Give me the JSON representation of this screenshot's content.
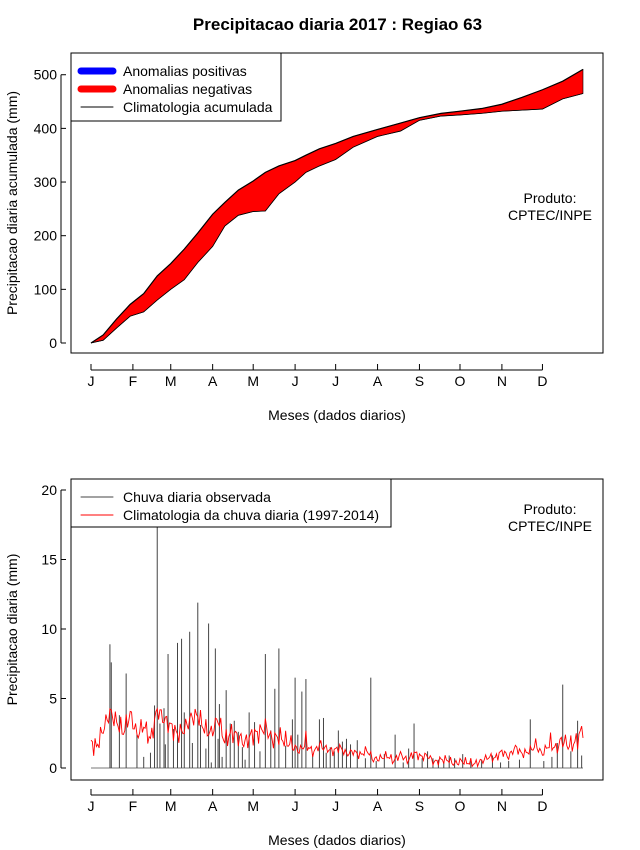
{
  "title": "Precipitacao diaria 2017 : Regiao 63",
  "colors": {
    "negative": "#ff0000",
    "positive": "#0000ff",
    "climatology_line": "#ff0000",
    "observed_bars": "#444444",
    "axis": "#000000"
  },
  "chart_data": [
    {
      "type": "area",
      "xlabel": "Meses (dados diarios)",
      "ylabel": "Precipitacao diaria acumulada (mm)",
      "xlim": [
        1,
        365
      ],
      "ylim": [
        0,
        520
      ],
      "yticks": [
        0,
        100,
        200,
        300,
        400,
        500
      ],
      "month_ticks": [
        {
          "day": 1,
          "label": "J"
        },
        {
          "day": 32,
          "label": "F"
        },
        {
          "day": 60,
          "label": "M"
        },
        {
          "day": 91,
          "label": "A"
        },
        {
          "day": 121,
          "label": "M"
        },
        {
          "day": 152,
          "label": "J"
        },
        {
          "day": 182,
          "label": "J"
        },
        {
          "day": 213,
          "label": "A"
        },
        {
          "day": 244,
          "label": "S"
        },
        {
          "day": 274,
          "label": "O"
        },
        {
          "day": 305,
          "label": "N"
        },
        {
          "day": 335,
          "label": "D"
        }
      ],
      "legend": [
        {
          "label": "Anomalias positivas",
          "kind": "thick",
          "color": "#0000ff"
        },
        {
          "label": "Anomalias negativas",
          "kind": "thick",
          "color": "#ff0000"
        },
        {
          "label": "Climatologia acumulada",
          "kind": "thin",
          "color": "#000000"
        }
      ],
      "annotation": [
        "Produto:",
        "CPTEC/INPE"
      ],
      "series": [
        {
          "name": "Climatologia acumulada",
          "x": [
            1,
            10,
            20,
            30,
            40,
            50,
            60,
            70,
            80,
            91,
            100,
            110,
            121,
            130,
            140,
            152,
            160,
            170,
            182,
            195,
            213,
            230,
            244,
            260,
            274,
            290,
            305,
            320,
            335,
            350,
            365
          ],
          "y": [
            0,
            15,
            45,
            72,
            92,
            125,
            148,
            175,
            205,
            240,
            262,
            285,
            302,
            318,
            330,
            340,
            350,
            362,
            372,
            385,
            398,
            410,
            420,
            428,
            432,
            437,
            445,
            458,
            472,
            488,
            510
          ]
        },
        {
          "name": "Chuva acumulada observada",
          "x": [
            1,
            10,
            20,
            30,
            40,
            50,
            60,
            70,
            80,
            91,
            100,
            110,
            121,
            130,
            140,
            152,
            160,
            170,
            182,
            195,
            213,
            230,
            244,
            260,
            274,
            290,
            305,
            320,
            335,
            350,
            365
          ],
          "y": [
            0,
            5,
            28,
            50,
            58,
            80,
            100,
            118,
            150,
            180,
            218,
            238,
            245,
            246,
            278,
            300,
            318,
            330,
            342,
            365,
            385,
            395,
            415,
            423,
            425,
            428,
            432,
            434,
            436,
            455,
            465
          ]
        }
      ]
    },
    {
      "type": "bar",
      "xlabel": "Meses (dados diarios)",
      "ylabel": "Precipitacao diaria (mm)",
      "xlim": [
        1,
        365
      ],
      "ylim": [
        0,
        20
      ],
      "yticks": [
        0,
        5,
        10,
        15,
        20
      ],
      "month_ticks": [
        {
          "day": 1,
          "label": "J"
        },
        {
          "day": 32,
          "label": "F"
        },
        {
          "day": 60,
          "label": "M"
        },
        {
          "day": 91,
          "label": "A"
        },
        {
          "day": 121,
          "label": "M"
        },
        {
          "day": 152,
          "label": "J"
        },
        {
          "day": 182,
          "label": "J"
        },
        {
          "day": 213,
          "label": "A"
        },
        {
          "day": 244,
          "label": "S"
        },
        {
          "day": 274,
          "label": "O"
        },
        {
          "day": 305,
          "label": "N"
        },
        {
          "day": 335,
          "label": "D"
        }
      ],
      "legend": [
        {
          "label": "Chuva diaria observada",
          "kind": "thin",
          "color": "#444444"
        },
        {
          "label": "Climatologia da chuva diaria (1997-2014)",
          "kind": "thin",
          "color": "#ff0000"
        }
      ],
      "annotation": [
        "Produto:",
        "CPTEC/INPE"
      ],
      "series": [
        {
          "name": "Chuva diaria observada",
          "x": [
            15,
            16,
            22,
            27,
            35,
            40,
            45,
            48,
            50,
            52,
            55,
            56,
            58,
            62,
            65,
            68,
            70,
            74,
            76,
            80,
            82,
            86,
            88,
            90,
            93,
            95,
            96,
            98,
            101,
            104,
            107,
            110,
            113,
            115,
            118,
            122,
            126,
            130,
            134,
            137,
            140,
            145,
            150,
            152,
            154,
            157,
            160,
            165,
            170,
            173,
            175,
            178,
            181,
            184,
            187,
            190,
            193,
            198,
            204,
            208,
            212,
            218,
            226,
            232,
            236,
            240,
            246,
            250,
            254,
            258,
            262,
            266,
            270,
            276,
            282,
            290,
            298,
            304,
            310,
            318,
            326,
            336,
            342,
            346,
            350,
            356,
            361,
            364
          ],
          "y": [
            8.9,
            7.6,
            3.8,
            6.8,
            2.4,
            0.8,
            1.1,
            4.5,
            17.5,
            3.2,
            4.3,
            1.7,
            8.2,
            2.8,
            9.0,
            9.3,
            4.0,
            9.8,
            1.8,
            11.9,
            3.1,
            1.4,
            10.4,
            0.4,
            8.6,
            2.1,
            4.6,
            0.8,
            5.6,
            3.2,
            3.4,
            2.6,
            1.5,
            0.6,
            4.0,
            3.3,
            1.2,
            8.2,
            2.7,
            5.7,
            8.6,
            1.6,
            3.5,
            6.5,
            2.4,
            5.5,
            6.4,
            1.0,
            3.5,
            3.6,
            1.1,
            1.5,
            1.2,
            2.7,
            1.9,
            2.1,
            1.7,
            2.0,
            0.7,
            6.5,
            0.5,
            1.0,
            2.4,
            0.4,
            1.4,
            3.2,
            0.7,
            1.2,
            0.7,
            0.6,
            0.4,
            0.9,
            0.7,
            1.0,
            0.5,
            0.6,
            0.9,
            0.4,
            0.5,
            0.6,
            3.5,
            0.5,
            0.8,
            1.8,
            6.0,
            1.2,
            3.4,
            0.9
          ]
        },
        {
          "name": "Climatologia da chuva diaria (1997-2014)",
          "x": [
            1,
            5,
            10,
            15,
            20,
            25,
            30,
            35,
            40,
            45,
            50,
            55,
            60,
            65,
            70,
            75,
            80,
            85,
            90,
            95,
            100,
            105,
            110,
            115,
            120,
            125,
            130,
            135,
            140,
            145,
            150,
            155,
            160,
            165,
            170,
            175,
            180,
            185,
            190,
            195,
            200,
            205,
            210,
            215,
            220,
            225,
            230,
            235,
            240,
            245,
            250,
            255,
            260,
            265,
            270,
            275,
            280,
            285,
            290,
            295,
            300,
            305,
            310,
            315,
            320,
            325,
            330,
            335,
            340,
            345,
            350,
            355,
            360,
            365
          ],
          "y": [
            1.8,
            1.5,
            2.8,
            4.0,
            3.3,
            2.6,
            3.9,
            2.4,
            3.1,
            2.0,
            4.2,
            3.5,
            3.0,
            2.4,
            2.8,
            3.6,
            3.8,
            2.8,
            2.5,
            3.6,
            1.9,
            2.6,
            2.2,
            1.8,
            2.4,
            2.5,
            3.0,
            2.0,
            2.3,
            1.9,
            1.7,
            1.2,
            1.9,
            1.1,
            1.6,
            1.4,
            1.2,
            1.5,
            1.0,
            1.2,
            0.9,
            1.3,
            0.6,
            0.7,
            0.9,
            0.5,
            1.0,
            0.5,
            1.1,
            0.8,
            0.9,
            0.4,
            0.6,
            0.6,
            0.3,
            0.5,
            0.4,
            0.3,
            0.5,
            0.8,
            0.7,
            1.2,
            0.8,
            1.5,
            1.0,
            1.2,
            1.6,
            1.0,
            1.8,
            1.5,
            2.0,
            1.6,
            1.9,
            2.9
          ]
        }
      ]
    }
  ]
}
